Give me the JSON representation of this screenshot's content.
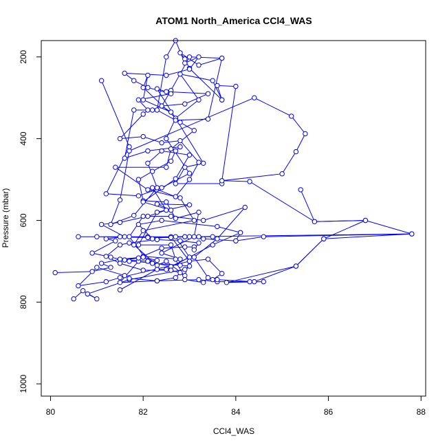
{
  "chart_data": {
    "type": "line",
    "title": "ATOM1 North_America CCl4_WAS",
    "xlabel": "CCl4_WAS",
    "ylabel": "Pressure (mbar)",
    "xlim": [
      79.8,
      88.1
    ],
    "ylim": [
      1030,
      160
    ],
    "y_reversed": true,
    "x_ticks": [
      80,
      82,
      84,
      86,
      88
    ],
    "y_ticks": [
      200,
      400,
      600,
      800,
      1000
    ],
    "grid": false,
    "legend": "none",
    "colors": {
      "series": "#0000ff",
      "axes": "#000000"
    },
    "series": [
      {
        "points": [
          [
            81.1,
            258
          ],
          [
            81.7,
            420
          ],
          [
            81.2,
            535
          ],
          [
            81.9,
            540
          ],
          [
            82.4,
            520
          ],
          [
            83.0,
            485
          ],
          [
            82.5,
            400
          ],
          [
            82.7,
            350
          ],
          [
            83.2,
            305
          ],
          [
            82.8,
            242
          ],
          [
            83.5,
            258
          ],
          [
            83.7,
            305
          ],
          [
            83.0,
            228
          ],
          [
            82.9,
            205
          ],
          [
            82.8,
            190
          ],
          [
            83.2,
            220
          ],
          [
            83.7,
            203
          ],
          [
            83.0,
            200
          ],
          [
            82.6,
            282
          ],
          [
            82.4,
            320
          ],
          [
            82.6,
            335
          ],
          [
            82.0,
            305
          ],
          [
            82.1,
            245
          ],
          [
            82.0,
            275
          ],
          [
            82.8,
            360
          ],
          [
            83.1,
            380
          ],
          [
            82.6,
            425
          ],
          [
            82.5,
            470
          ],
          [
            81.4,
            470
          ],
          [
            82.1,
            525
          ],
          [
            82.8,
            545
          ],
          [
            83.1,
            600
          ],
          [
            82.0,
            625
          ],
          [
            81.8,
            660
          ],
          [
            82.3,
            710
          ],
          [
            82.5,
            700
          ],
          [
            82.9,
            735
          ],
          [
            83.0,
            700
          ],
          [
            82.6,
            640
          ],
          [
            82.2,
            645
          ],
          [
            81.9,
            610
          ],
          [
            82.4,
            600
          ],
          [
            83.6,
            615
          ],
          [
            84.1,
            630
          ],
          [
            83.5,
            660
          ],
          [
            82.5,
            720
          ],
          [
            82.3,
            720
          ],
          [
            81.5,
            770
          ]
        ]
      },
      {
        "points": [
          [
            80.5,
            792
          ],
          [
            80.7,
            772
          ],
          [
            81.0,
            792
          ],
          [
            80.8,
            780
          ],
          [
            81.7,
            745
          ],
          [
            82.9,
            720
          ],
          [
            83.0,
            712
          ],
          [
            82.8,
            710
          ],
          [
            82.2,
            705
          ],
          [
            81.6,
            697
          ],
          [
            82.0,
            688
          ],
          [
            82.8,
            695
          ],
          [
            82.4,
            680
          ],
          [
            83.1,
            640
          ],
          [
            83.2,
            580
          ],
          [
            82.7,
            595
          ],
          [
            82.5,
            555
          ],
          [
            82.0,
            552
          ],
          [
            81.9,
            500
          ],
          [
            82.2,
            480
          ],
          [
            82.6,
            455
          ],
          [
            82.7,
            430
          ],
          [
            82.8,
            420
          ],
          [
            82.1,
            430
          ],
          [
            81.6,
            448
          ],
          [
            81.8,
            330
          ],
          [
            82.2,
            330
          ],
          [
            82.4,
            320
          ],
          [
            82.9,
            315
          ],
          [
            83.4,
            290
          ],
          [
            82.5,
            285
          ],
          [
            82.3,
            278
          ],
          [
            82.7,
            350
          ],
          [
            83.3,
            460
          ],
          [
            82.9,
            470
          ],
          [
            82.7,
            510
          ],
          [
            83.7,
            510
          ],
          [
            83.7,
            503
          ],
          [
            84.3,
            505
          ],
          [
            85.7,
            603
          ],
          [
            86.8,
            600
          ],
          [
            87.8,
            633
          ],
          [
            83.0,
            640
          ],
          [
            82.9,
            640
          ],
          [
            82.1,
            640
          ],
          [
            81.5,
            640
          ],
          [
            80.6,
            640
          ],
          [
            81.0,
            640
          ],
          [
            82.1,
            642
          ],
          [
            82.6,
            642
          ],
          [
            82.9,
            640
          ],
          [
            83.3,
            645
          ],
          [
            84.0,
            650
          ],
          [
            84.1,
            630
          ]
        ]
      },
      {
        "points": [
          [
            83.7,
            305
          ],
          [
            83.6,
            270
          ],
          [
            84.0,
            272
          ],
          [
            83.7,
            503
          ],
          [
            85.0,
            486
          ],
          [
            85.3,
            432
          ],
          [
            85.5,
            388
          ],
          [
            85.2,
            345
          ],
          [
            84.4,
            300
          ],
          [
            81.7,
            430
          ],
          [
            81.5,
            550
          ],
          [
            81.3,
            610
          ],
          [
            81.8,
            588
          ],
          [
            82.3,
            520
          ],
          [
            82.1,
            460
          ],
          [
            82.4,
            430
          ],
          [
            83.0,
            440
          ],
          [
            82.7,
            498
          ],
          [
            82.0,
            555
          ],
          [
            82.6,
            575
          ],
          [
            82.3,
            560
          ],
          [
            83.0,
            562
          ],
          [
            82.3,
            580
          ],
          [
            81.9,
            660
          ],
          [
            82.6,
            660
          ],
          [
            82.7,
            695
          ],
          [
            82.9,
            745
          ],
          [
            83.3,
            752
          ],
          [
            83.4,
            740
          ],
          [
            83.1,
            690
          ],
          [
            83.6,
            645
          ],
          [
            84.2,
            568
          ],
          [
            83.3,
            600
          ],
          [
            82.6,
            590
          ],
          [
            82.0,
            590
          ],
          [
            81.7,
            640
          ],
          [
            82.1,
            700
          ],
          [
            82.6,
            713
          ],
          [
            83.0,
            690
          ],
          [
            82.7,
            640
          ],
          [
            83.2,
            640
          ],
          [
            83.5,
            640
          ]
        ]
      },
      {
        "points": [
          [
            85.4,
            525
          ],
          [
            85.7,
            603
          ],
          [
            86.8,
            600
          ],
          [
            85.9,
            645
          ],
          [
            85.3,
            712
          ],
          [
            83.8,
            752
          ],
          [
            84.6,
            750
          ],
          [
            84.3,
            750
          ],
          [
            83.6,
            750
          ],
          [
            83.2,
            745
          ],
          [
            82.3,
            748
          ],
          [
            81.5,
            752
          ],
          [
            81.9,
            700
          ],
          [
            81.7,
            700
          ],
          [
            81.3,
            690
          ],
          [
            80.9,
            680
          ],
          [
            81.4,
            650
          ],
          [
            81.2,
            645
          ],
          [
            81.6,
            640
          ],
          [
            81.1,
            610
          ],
          [
            81.5,
            605
          ],
          [
            82.1,
            590
          ],
          [
            82.5,
            575
          ],
          [
            82.2,
            520
          ],
          [
            82.7,
            542
          ],
          [
            83.0,
            500
          ],
          [
            83.2,
            458
          ],
          [
            82.8,
            405
          ],
          [
            82.4,
            410
          ],
          [
            82.0,
            395
          ],
          [
            81.5,
            400
          ],
          [
            82.0,
            340
          ],
          [
            82.1,
            330
          ],
          [
            81.9,
            305
          ],
          [
            82.6,
            290
          ],
          [
            82.1,
            275
          ],
          [
            81.8,
            258
          ],
          [
            81.6,
            240
          ],
          [
            82.5,
            245
          ],
          [
            83.0,
            230
          ],
          [
            83.2,
            200
          ],
          [
            82.9,
            215
          ],
          [
            82.7,
            160
          ],
          [
            82.5,
            200
          ],
          [
            82.3,
            330
          ],
          [
            82.7,
            355
          ],
          [
            83.4,
            352
          ],
          [
            83.7,
            203
          ]
        ]
      },
      {
        "points": [
          [
            80.1,
            728
          ],
          [
            80.9,
            725
          ],
          [
            81.3,
            715
          ],
          [
            81.1,
            705
          ],
          [
            81.5,
            695
          ],
          [
            82.0,
            690
          ],
          [
            82.3,
            698
          ],
          [
            82.1,
            700
          ],
          [
            81.6,
            697
          ],
          [
            81.9,
            692
          ],
          [
            82.4,
            668
          ],
          [
            82.9,
            665
          ],
          [
            83.1,
            665
          ],
          [
            83.1,
            672
          ],
          [
            83.2,
            655
          ],
          [
            82.8,
            650
          ],
          [
            82.3,
            647
          ],
          [
            81.7,
            655
          ],
          [
            81.5,
            660
          ],
          [
            81.2,
            688
          ],
          [
            81.5,
            705
          ],
          [
            82.0,
            722
          ],
          [
            82.6,
            722
          ],
          [
            82.8,
            728
          ],
          [
            82.7,
            740
          ],
          [
            82.3,
            748
          ],
          [
            81.7,
            742
          ],
          [
            81.6,
            735
          ],
          [
            81.0,
            715
          ],
          [
            80.6,
            760
          ],
          [
            81.2,
            750
          ],
          [
            81.5,
            740
          ],
          [
            83.0,
            700
          ],
          [
            83.4,
            695
          ],
          [
            83.7,
            730
          ],
          [
            83.5,
            745
          ],
          [
            83.6,
            745
          ],
          [
            84.4,
            750
          ],
          [
            85.3,
            712
          ],
          [
            85.9,
            645
          ],
          [
            87.8,
            633
          ],
          [
            84.6,
            640
          ],
          [
            84.0,
            650
          ]
        ]
      }
    ]
  }
}
